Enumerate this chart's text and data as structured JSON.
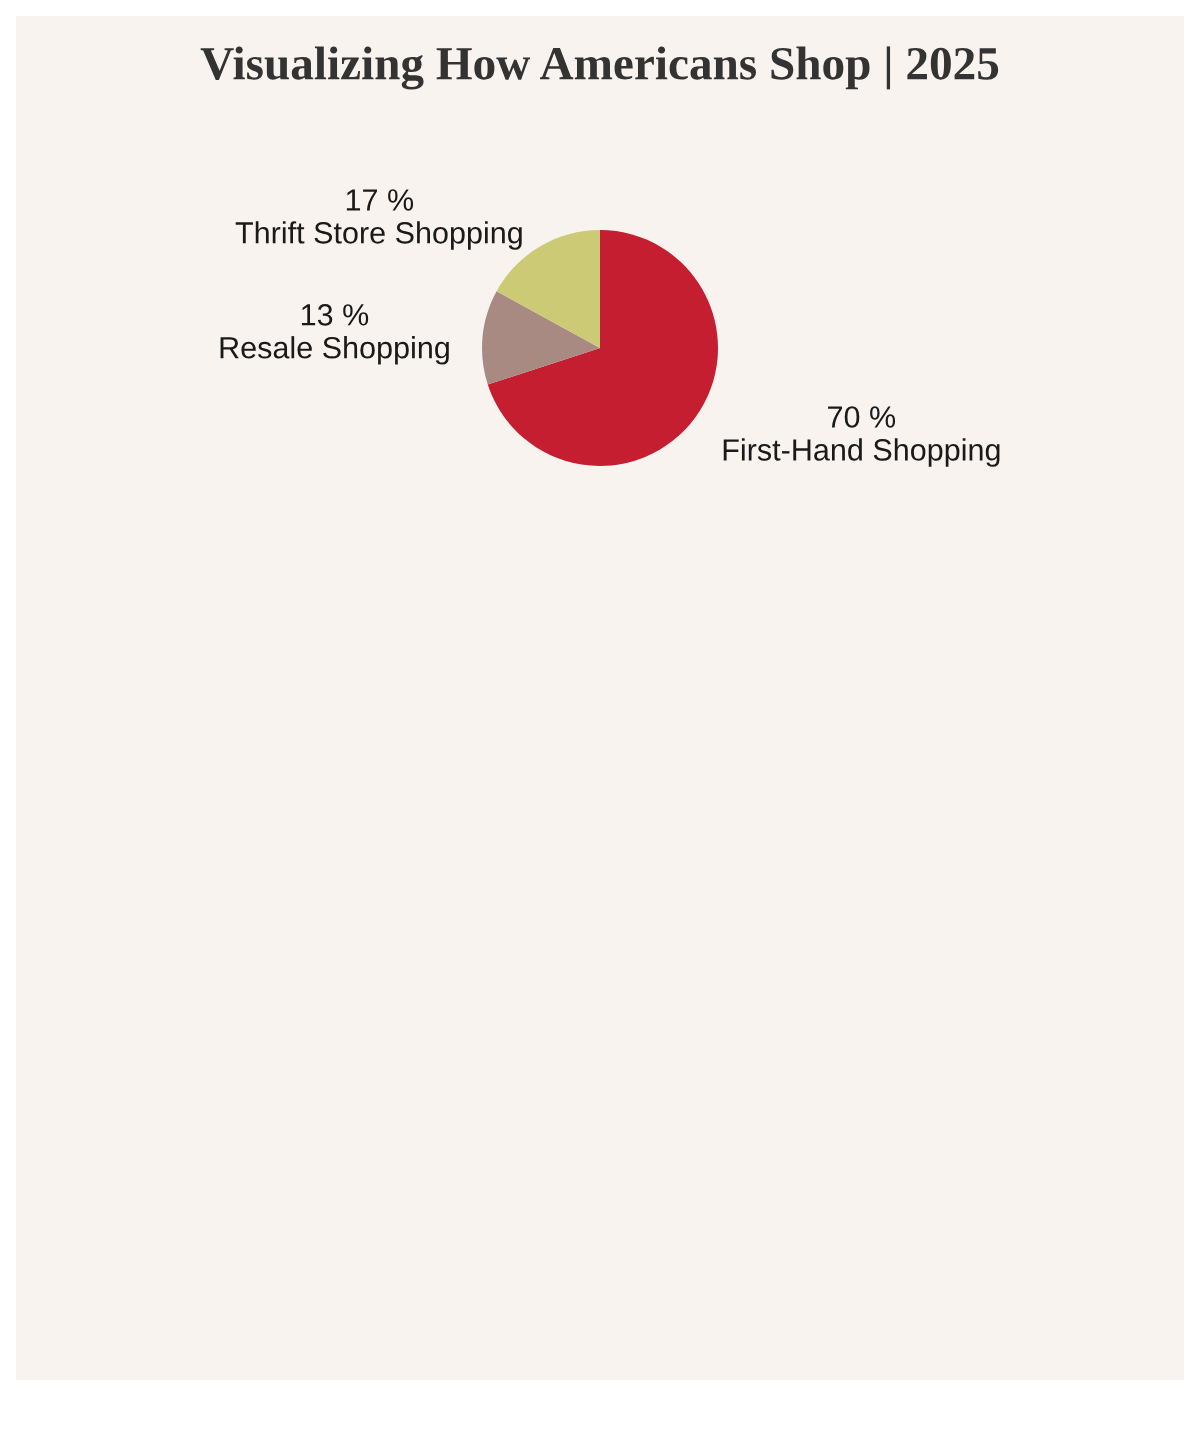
{
  "chart_data": {
    "type": "pie",
    "title": "Visualizing How Americans Shop | 2025",
    "categories": [
      "First-Hand Shopping",
      "Resale Shopping",
      "Thrift Store Shopping"
    ],
    "values": [
      70,
      13,
      17
    ],
    "colors": [
      "#c41e30",
      "#a98a82",
      "#cdca76"
    ],
    "value_labels": [
      "70 %",
      "13 %",
      "17 %"
    ]
  }
}
